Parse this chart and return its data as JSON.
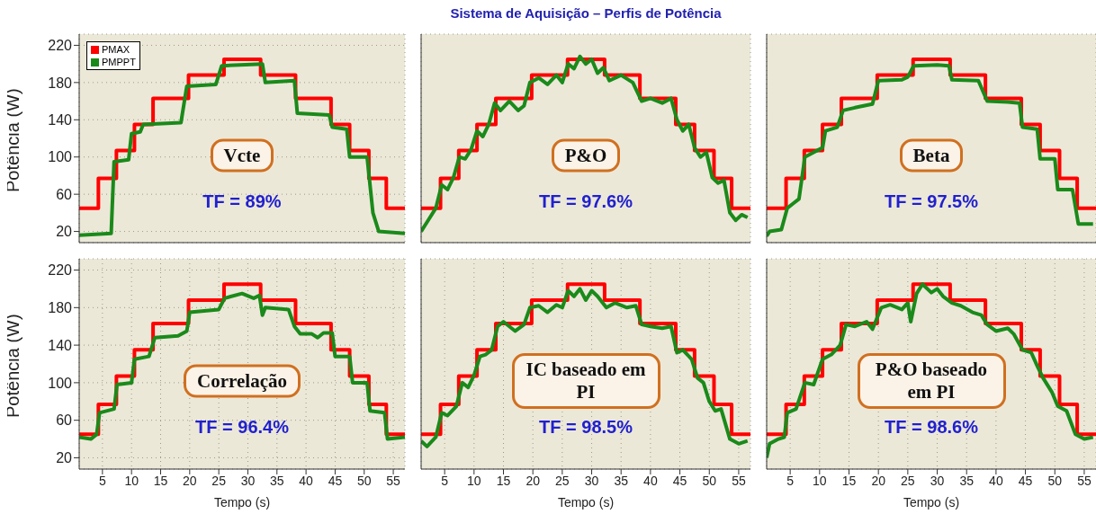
{
  "chart_data": [
    {
      "type": "line",
      "ylabel": "Potência (W)",
      "xlim": [
        1,
        57
      ],
      "xticks": [
        5,
        10,
        15,
        20,
        25,
        30,
        35,
        40,
        45,
        50,
        55
      ],
      "ylim": [
        8,
        232
      ],
      "yticks": [
        20,
        60,
        100,
        140,
        180,
        220
      ],
      "tick_labels": "y",
      "grid": true,
      "legend": "top left",
      "annotations": [
        "Vcte",
        "TF = 89%"
      ],
      "series": [
        {
          "name": "PMAX",
          "type": "step",
          "color": "#ff0000",
          "x": [
            1,
            4.3,
            7.4,
            10.5,
            13.7,
            19.8,
            25.9,
            32.2,
            38.2,
            44.3,
            47.5,
            50.8,
            53.8,
            57
          ],
          "values": [
            45,
            77,
            107,
            135,
            163,
            188,
            205,
            188,
            163,
            135,
            107,
            77,
            45,
            45
          ]
        },
        {
          "name": "PMPPT",
          "type": "line",
          "color": "#1a8a1a",
          "x": [
            1,
            6.5,
            7,
            9.5,
            10,
            11.5,
            12,
            18.5,
            19.5,
            24.5,
            25.5,
            32.5,
            33,
            38,
            38.5,
            44,
            44.5,
            47,
            47.5,
            50.5,
            51.5,
            52.5,
            57
          ],
          "values": [
            16,
            18,
            95,
            97,
            125,
            127,
            135,
            137,
            176,
            178,
            198,
            200,
            180,
            182,
            147,
            145,
            132,
            130,
            100,
            100,
            40,
            20,
            18
          ]
        }
      ]
    },
    {
      "type": "line",
      "title": "Sistema de Aquisição – Perfis de Potência",
      "xlim": [
        1,
        57
      ],
      "xticks": [
        5,
        10,
        15,
        20,
        25,
        30,
        35,
        40,
        45,
        50,
        55
      ],
      "ylim": [
        8,
        232
      ],
      "yticks": [
        20,
        60,
        100,
        140,
        180,
        220
      ],
      "tick_labels": false,
      "grid": true,
      "annotations": [
        "P&O",
        "TF = 97.6%"
      ],
      "series": [
        {
          "type": "step",
          "color": "#ff0000",
          "x": [
            1,
            4.3,
            7.4,
            10.5,
            13.7,
            19.8,
            25.9,
            32.2,
            38.2,
            44.3,
            47.5,
            50.8,
            53.8,
            57
          ],
          "values": [
            45,
            77,
            107,
            135,
            163,
            188,
            205,
            188,
            163,
            135,
            107,
            77,
            45,
            45
          ]
        },
        {
          "type": "line",
          "color": "#1a8a1a",
          "x": [
            1,
            2,
            3.5,
            4.5,
            5.5,
            6.5,
            7.5,
            8.5,
            9.5,
            10.5,
            11.5,
            12.5,
            13.5,
            14.5,
            16,
            17.5,
            18.5,
            19.5,
            21,
            22.5,
            24,
            25,
            26,
            27,
            28,
            29,
            30,
            31,
            32,
            33,
            35,
            37,
            38.5,
            40,
            42,
            43.5,
            44.5,
            45.5,
            46.5,
            47.5,
            48.5,
            49.5,
            50.5,
            51.5,
            52.5,
            53.5,
            54.5,
            55.5,
            56.5
          ],
          "values": [
            20,
            30,
            45,
            70,
            65,
            78,
            100,
            98,
            108,
            128,
            122,
            135,
            158,
            150,
            160,
            150,
            155,
            180,
            185,
            178,
            188,
            180,
            200,
            195,
            208,
            200,
            205,
            190,
            196,
            182,
            188,
            180,
            160,
            163,
            158,
            163,
            140,
            128,
            135,
            110,
            100,
            105,
            78,
            72,
            75,
            40,
            32,
            38,
            35
          ]
        }
      ]
    },
    {
      "type": "line",
      "xlim": [
        1,
        57
      ],
      "xticks": [
        5,
        10,
        15,
        20,
        25,
        30,
        35,
        40,
        45,
        50,
        55
      ],
      "ylim": [
        8,
        232
      ],
      "yticks": [
        20,
        60,
        100,
        140,
        180,
        220
      ],
      "tick_labels": false,
      "grid": true,
      "annotations": [
        "Beta",
        "TF = 97.5%"
      ],
      "series": [
        {
          "type": "step",
          "color": "#ff0000",
          "x": [
            1,
            4.3,
            7.4,
            10.5,
            13.7,
            19.8,
            25.9,
            32.2,
            38.2,
            44.3,
            47.5,
            50.8,
            53.8,
            57
          ],
          "values": [
            45,
            77,
            107,
            135,
            163,
            188,
            205,
            188,
            163,
            135,
            107,
            77,
            45,
            45
          ]
        },
        {
          "type": "line",
          "color": "#1a8a1a",
          "x": [
            1,
            1.5,
            3.5,
            4.5,
            5.5,
            6.5,
            7.5,
            9,
            10.5,
            11,
            13,
            14,
            16,
            19,
            20,
            24,
            25,
            26,
            30,
            32,
            32.5,
            37,
            38.5,
            42,
            44,
            44.5,
            47,
            47.5,
            50,
            50.5,
            53,
            54,
            56.5
          ],
          "values": [
            15,
            20,
            22,
            45,
            50,
            55,
            100,
            105,
            110,
            128,
            132,
            150,
            153,
            157,
            182,
            183,
            186,
            198,
            199,
            198,
            183,
            182,
            160,
            159,
            158,
            132,
            130,
            98,
            98,
            65,
            65,
            28,
            28
          ]
        }
      ]
    },
    {
      "type": "line",
      "xlabel": "Tempo (s)",
      "ylabel": "Potência (W)",
      "xlim": [
        1,
        57
      ],
      "xticks": [
        5,
        10,
        15,
        20,
        25,
        30,
        35,
        40,
        45,
        50,
        55
      ],
      "ylim": [
        8,
        232
      ],
      "yticks": [
        20,
        60,
        100,
        140,
        180,
        220
      ],
      "grid": true,
      "annotations": [
        "Correlação",
        "TF = 96.4%"
      ],
      "series": [
        {
          "type": "step",
          "color": "#ff0000",
          "x": [
            1,
            4.3,
            7.4,
            10.5,
            13.7,
            19.8,
            25.9,
            32.2,
            38.2,
            44.3,
            47.5,
            50.8,
            53.8,
            57
          ],
          "values": [
            45,
            77,
            107,
            135,
            163,
            188,
            205,
            188,
            163,
            135,
            107,
            77,
            45,
            45
          ]
        },
        {
          "type": "line",
          "color": "#1a8a1a",
          "x": [
            1,
            3,
            4,
            4.5,
            7,
            7.5,
            10,
            10.5,
            13,
            14,
            18,
            19.5,
            20,
            25,
            26,
            29,
            31,
            32,
            32.5,
            33,
            37,
            38,
            39,
            41,
            42,
            43,
            44.5,
            45,
            47.5,
            48,
            50.5,
            51,
            53.5,
            54,
            57
          ],
          "values": [
            42,
            40,
            45,
            68,
            72,
            98,
            100,
            125,
            128,
            148,
            150,
            155,
            175,
            178,
            190,
            195,
            190,
            193,
            172,
            180,
            178,
            160,
            152,
            152,
            148,
            153,
            153,
            128,
            128,
            100,
            100,
            70,
            68,
            40,
            42
          ]
        }
      ]
    },
    {
      "type": "line",
      "xlabel": "Tempo (s)",
      "xlim": [
        1,
        57
      ],
      "xticks": [
        5,
        10,
        15,
        20,
        25,
        30,
        35,
        40,
        45,
        50,
        55
      ],
      "ylim": [
        8,
        232
      ],
      "yticks": [
        20,
        60,
        100,
        140,
        180,
        220
      ],
      "tick_labels": "x",
      "grid": true,
      "annotations": [
        "IC baseado em PI",
        "TF = 98.5%"
      ],
      "series": [
        {
          "type": "step",
          "color": "#ff0000",
          "x": [
            1,
            4.3,
            7.4,
            10.5,
            13.7,
            19.8,
            25.9,
            32.2,
            38.2,
            44.3,
            47.5,
            50.8,
            53.8,
            57
          ],
          "values": [
            45,
            77,
            107,
            135,
            163,
            188,
            205,
            188,
            163,
            135,
            107,
            77,
            45,
            45
          ]
        },
        {
          "type": "line",
          "color": "#1a8a1a",
          "x": [
            1,
            2,
            3.5,
            4.5,
            5.5,
            7,
            8,
            9,
            10,
            11,
            12,
            13,
            14,
            15,
            17,
            18.5,
            19.5,
            21,
            22.5,
            24,
            25,
            26,
            27,
            28,
            29,
            30,
            31,
            32.5,
            34,
            36,
            37.5,
            38.5,
            40,
            42,
            43.5,
            44.5,
            45.5,
            47,
            48,
            49,
            50,
            51,
            52,
            53.5,
            55,
            56.5
          ],
          "values": [
            38,
            32,
            42,
            68,
            65,
            75,
            100,
            95,
            108,
            128,
            130,
            135,
            160,
            165,
            155,
            162,
            180,
            182,
            175,
            183,
            180,
            198,
            192,
            200,
            188,
            198,
            192,
            180,
            185,
            180,
            182,
            162,
            160,
            158,
            160,
            132,
            135,
            125,
            105,
            100,
            80,
            70,
            72,
            40,
            35,
            38
          ]
        }
      ]
    },
    {
      "type": "line",
      "xlabel": "Tempo (s)",
      "xlim": [
        1,
        57
      ],
      "xticks": [
        5,
        10,
        15,
        20,
        25,
        30,
        35,
        40,
        45,
        50,
        55
      ],
      "ylim": [
        8,
        232
      ],
      "yticks": [
        20,
        60,
        100,
        140,
        180,
        220
      ],
      "tick_labels": "x",
      "grid": true,
      "annotations": [
        "P&O baseado em PI",
        "TF = 98.6%"
      ],
      "series": [
        {
          "type": "step",
          "color": "#ff0000",
          "x": [
            1,
            4.3,
            7.4,
            10.5,
            13.7,
            19.8,
            25.9,
            32.2,
            38.2,
            44.3,
            47.5,
            50.8,
            53.8,
            57
          ],
          "values": [
            45,
            77,
            107,
            135,
            163,
            188,
            205,
            188,
            163,
            135,
            107,
            77,
            45,
            45
          ]
        },
        {
          "type": "line",
          "color": "#1a8a1a",
          "x": [
            1,
            1.5,
            3,
            4,
            4.5,
            6,
            7.5,
            9,
            10.5,
            12,
            13.5,
            14.5,
            16,
            18,
            19,
            20.5,
            22,
            24,
            25,
            25.5,
            26.5,
            27.5,
            29,
            30,
            31,
            32.5,
            34,
            36,
            37.5,
            38.5,
            40,
            42,
            43,
            44.5,
            46,
            47,
            48,
            49.5,
            50.5,
            52,
            53.5,
            55,
            56.5
          ],
          "values": [
            20,
            35,
            40,
            42,
            68,
            72,
            100,
            98,
            125,
            130,
            140,
            162,
            160,
            165,
            157,
            180,
            183,
            178,
            185,
            165,
            195,
            205,
            196,
            200,
            192,
            185,
            182,
            175,
            172,
            162,
            155,
            158,
            152,
            135,
            132,
            118,
            105,
            90,
            75,
            70,
            45,
            40,
            42
          ]
        }
      ]
    }
  ]
}
